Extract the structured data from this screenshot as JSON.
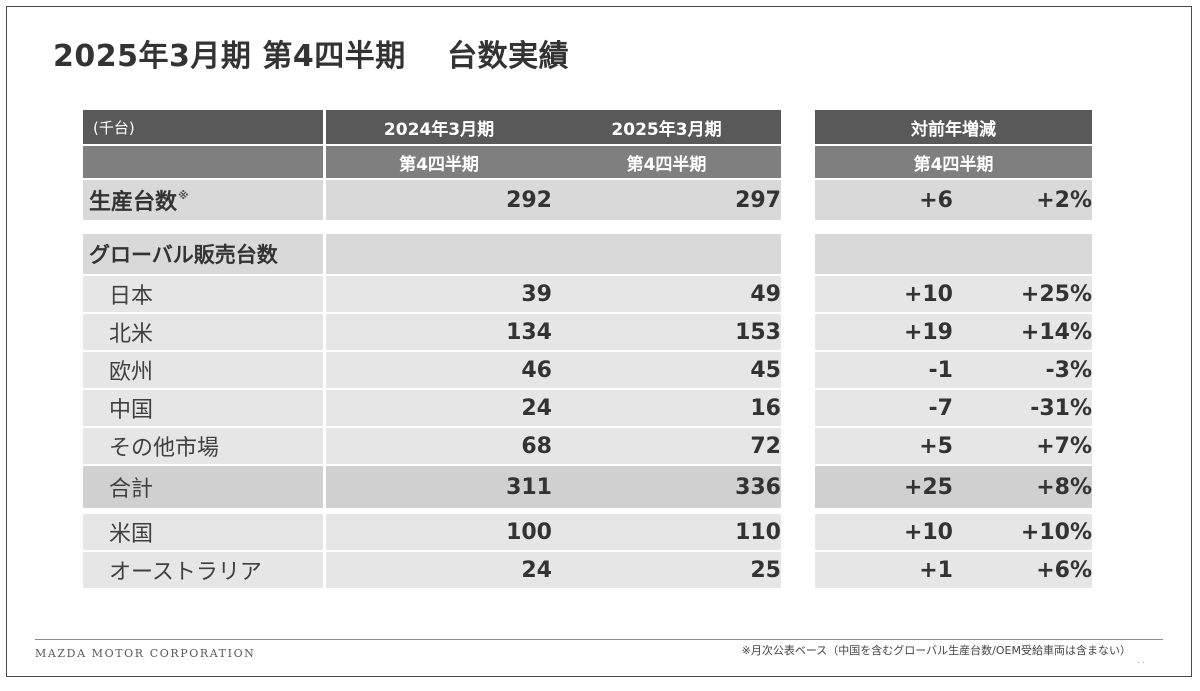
{
  "title": "2025年3月期 第4四半期　 台数実績",
  "unit": "(千台)",
  "headers": {
    "col1_line1": "2024年3月期",
    "col1_line2": "第4四半期",
    "col2_line1": "2025年3月期",
    "col2_line2": "第4四半期",
    "yoy_line1": "対前年増減",
    "yoy_line2": "第4四半期"
  },
  "production": {
    "label": "生産台数",
    "mark": "※",
    "v2024": "292",
    "v2025": "297",
    "diff": "+6",
    "pct": "+2%"
  },
  "global_sales_label": "グローバル販売台数",
  "rows": [
    {
      "label": "日本",
      "v2024": "39",
      "v2025": "49",
      "diff": "+10",
      "pct": "+25%"
    },
    {
      "label": "北米",
      "v2024": "134",
      "v2025": "153",
      "diff": "+19",
      "pct": "+14%"
    },
    {
      "label": "欧州",
      "v2024": "46",
      "v2025": "45",
      "diff": "-1",
      "pct": "-3%"
    },
    {
      "label": "中国",
      "v2024": "24",
      "v2025": "16",
      "diff": "-7",
      "pct": "-31%"
    },
    {
      "label": "その他市場",
      "v2024": "68",
      "v2025": "72",
      "diff": "+5",
      "pct": "+7%"
    }
  ],
  "total": {
    "label": "合計",
    "v2024": "311",
    "v2025": "336",
    "diff": "+25",
    "pct": "+8%"
  },
  "sub_rows": [
    {
      "label": "米国",
      "v2024": "100",
      "v2025": "110",
      "diff": "+10",
      "pct": "+10%"
    },
    {
      "label": "オーストラリア",
      "v2024": "24",
      "v2025": "25",
      "diff": "+1",
      "pct": "+6%"
    }
  ],
  "footer": {
    "company": "MAZDA MOTOR CORPORATION",
    "note": "※月次公表ベース（中国を含むグローバル生産台数/OEM受給車両は含まない）",
    "dots": ".."
  }
}
